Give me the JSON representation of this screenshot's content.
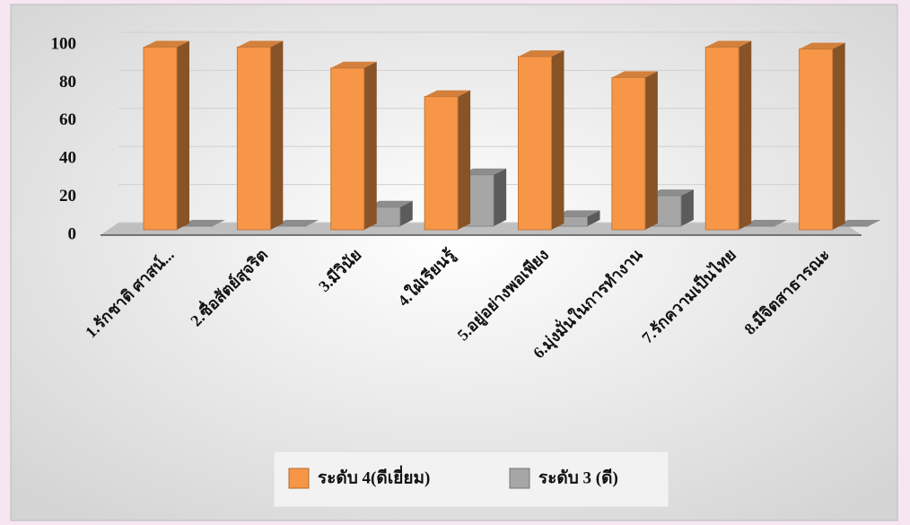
{
  "chart_data": {
    "type": "bar3d",
    "categories": [
      "1.รักชาติ ศาสน์...",
      "2.ซื่อสัตย์สุจริต",
      "3.มีวินัย",
      "4.ใฝ่เรียนรู้",
      "5.อยู่อย่างพอเพียง",
      "6.มุ่งมั่นในการทำงาน",
      "7.รักความเป็นไทย",
      "8.มีจิตสาธารณะ"
    ],
    "series": [
      {
        "name": "ระดับ 4(ดีเยี่ยม)",
        "color": "#f79646",
        "values": [
          96,
          96,
          85,
          70,
          91,
          80,
          96,
          95
        ]
      },
      {
        "name": "ระดับ 3 (ดี)",
        "color": "#a6a6a6",
        "values": [
          0,
          0,
          10,
          27,
          5,
          16,
          0,
          0
        ]
      }
    ],
    "ylim": [
      0,
      100
    ],
    "yticks": [
      0,
      20,
      40,
      60,
      80,
      100
    ],
    "grid": true,
    "legend": "bottom"
  }
}
